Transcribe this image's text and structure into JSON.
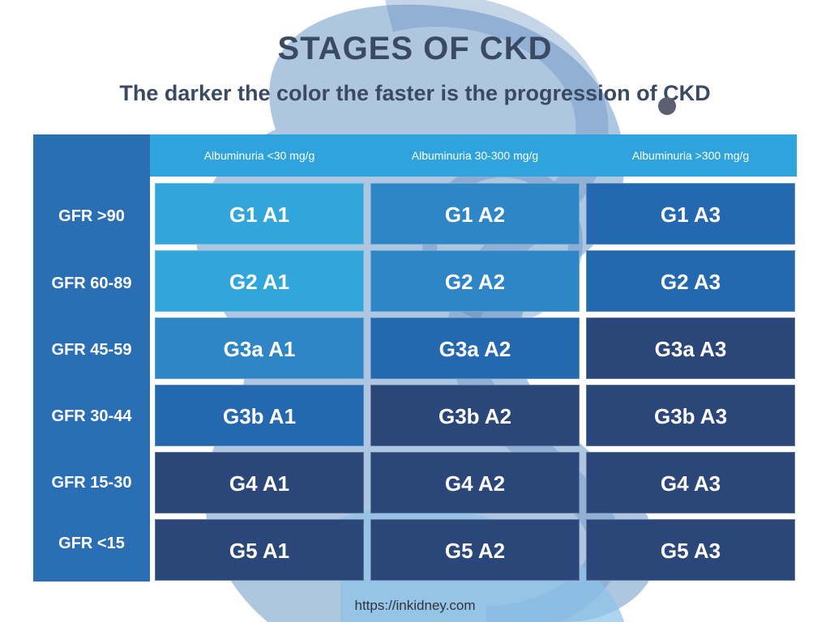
{
  "title": "STAGES OF CKD",
  "subtitle": "The darker the color the faster is the progression of CKD",
  "footer_url": "https://inkidney.com",
  "columns": [
    "Albuminuria <30 mg/g",
    "Albuminuria 30-300 mg/g",
    "Albuminuria >300 mg/g"
  ],
  "rows": [
    {
      "label": "GFR >90",
      "cells": [
        {
          "text": "G1 A1",
          "level": 1
        },
        {
          "text": "G1 A2",
          "level": 2
        },
        {
          "text": "G1 A3",
          "level": 3
        }
      ]
    },
    {
      "label": "GFR 60-89",
      "cells": [
        {
          "text": "G2 A1",
          "level": 1
        },
        {
          "text": "G2 A2",
          "level": 2
        },
        {
          "text": "G2 A3",
          "level": 3
        }
      ]
    },
    {
      "label": "GFR 45-59",
      "cells": [
        {
          "text": "G3a A1",
          "level": 2
        },
        {
          "text": "G3a A2",
          "level": 3
        },
        {
          "text": "G3a A3",
          "level": 4
        }
      ]
    },
    {
      "label": "GFR 30-44",
      "cells": [
        {
          "text": "G3b A1",
          "level": 3
        },
        {
          "text": "G3b A2",
          "level": 4
        },
        {
          "text": "G3b A3",
          "level": 4
        }
      ]
    },
    {
      "label": "GFR 15-30",
      "cells": [
        {
          "text": "G4 A1",
          "level": 4
        },
        {
          "text": "G4 A2",
          "level": 4
        },
        {
          "text": "G4 A3",
          "level": 4
        }
      ]
    },
    {
      "label": "GFR <15",
      "cells": [
        {
          "text": "G5 A1",
          "level": 4
        },
        {
          "text": "G5 A2",
          "level": 4
        },
        {
          "text": "G5 A3",
          "level": 4
        }
      ]
    }
  ],
  "colors": {
    "level_1": "#32a6da",
    "level_2": "#2e86c6",
    "level_3": "#2468b0",
    "level_4": "#2b4779",
    "header": "#2fa4dc",
    "row_panel": "#2a6fb4",
    "title": "#3b4a63"
  }
}
